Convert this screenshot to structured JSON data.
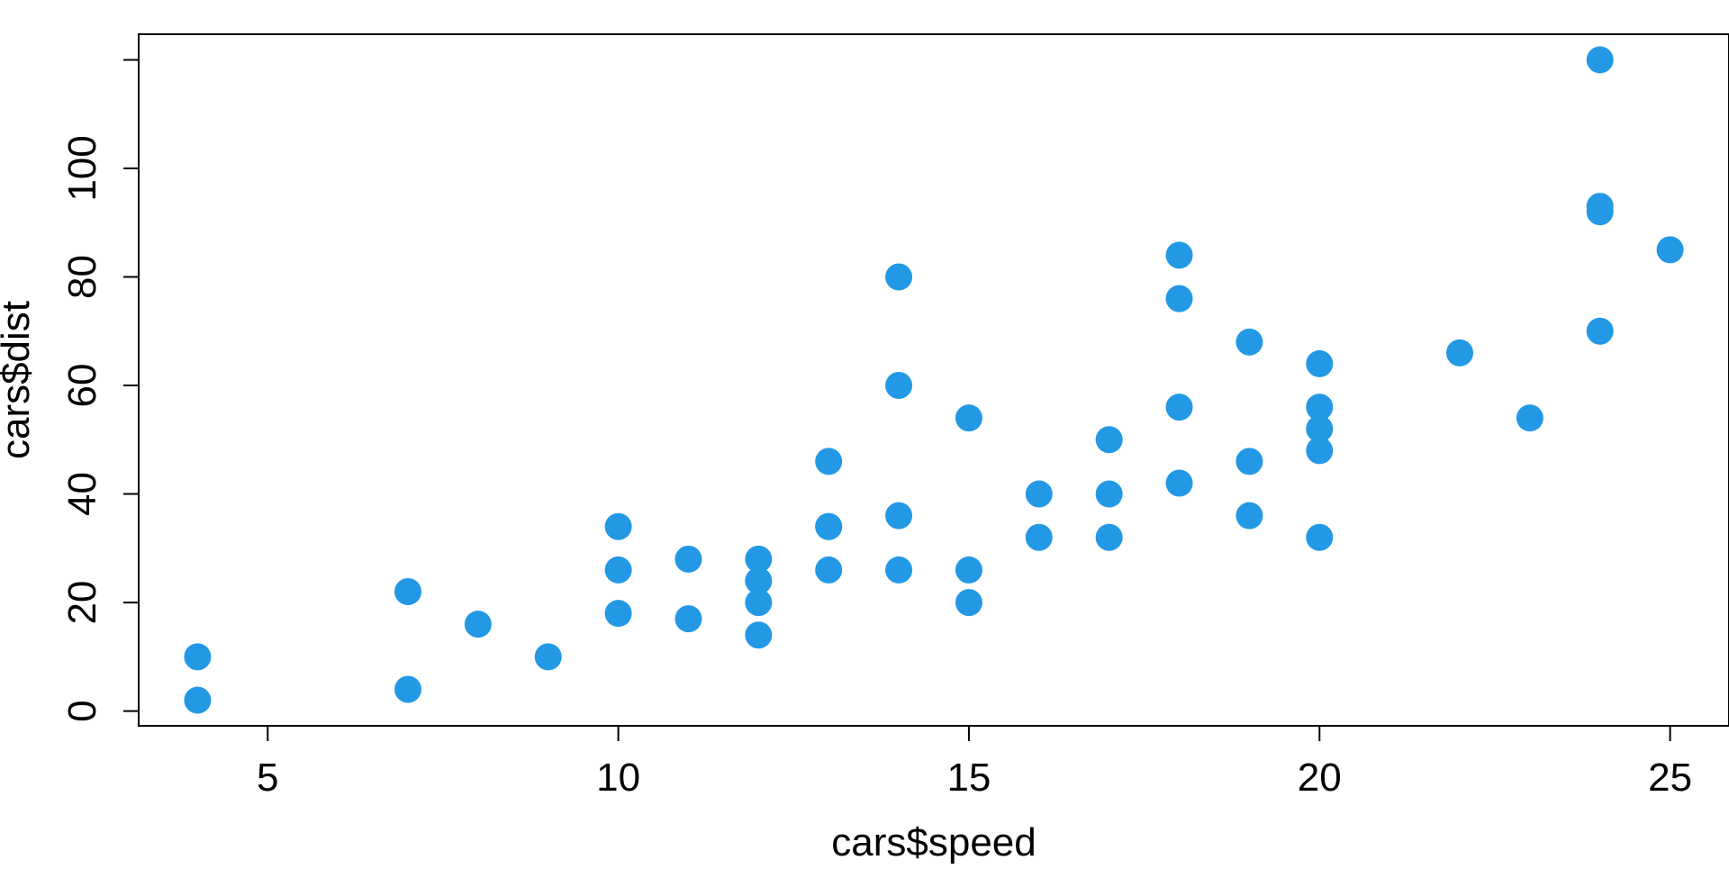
{
  "chart_data": {
    "type": "scatter",
    "title": "",
    "xlabel": "cars$speed",
    "ylabel": "cars$dist",
    "xlim": [
      3.16,
      25.84
    ],
    "ylim": [
      -2.72,
      124.72
    ],
    "x_ticks": [
      5,
      10,
      15,
      20,
      25
    ],
    "y_ticks": [
      0,
      20,
      40,
      60,
      80,
      100,
      120
    ],
    "x_tick_labels": [
      "5",
      "10",
      "15",
      "20",
      "25"
    ],
    "y_tick_labels": [
      "0",
      "20",
      "40",
      "60",
      "80",
      "100",
      ""
    ],
    "grid": false,
    "point_color": "#2399e6",
    "series": [
      {
        "x": [
          4,
          4,
          7,
          7,
          8,
          9,
          10,
          10,
          10,
          11,
          11,
          12,
          12,
          12,
          12,
          13,
          13,
          13,
          13,
          14,
          14,
          14,
          14,
          15,
          15,
          15,
          16,
          16,
          17,
          17,
          17,
          18,
          18,
          18,
          18,
          19,
          19,
          19,
          20,
          20,
          20,
          20,
          20,
          22,
          23,
          24,
          24,
          24,
          24,
          25
        ],
        "y": [
          2,
          10,
          4,
          22,
          16,
          10,
          18,
          26,
          34,
          17,
          28,
          14,
          20,
          24,
          28,
          26,
          34,
          34,
          46,
          26,
          36,
          60,
          80,
          20,
          26,
          54,
          32,
          40,
          32,
          40,
          50,
          42,
          56,
          76,
          84,
          36,
          46,
          68,
          32,
          48,
          52,
          56,
          64,
          66,
          54,
          70,
          92,
          93,
          120,
          85
        ]
      }
    ]
  }
}
